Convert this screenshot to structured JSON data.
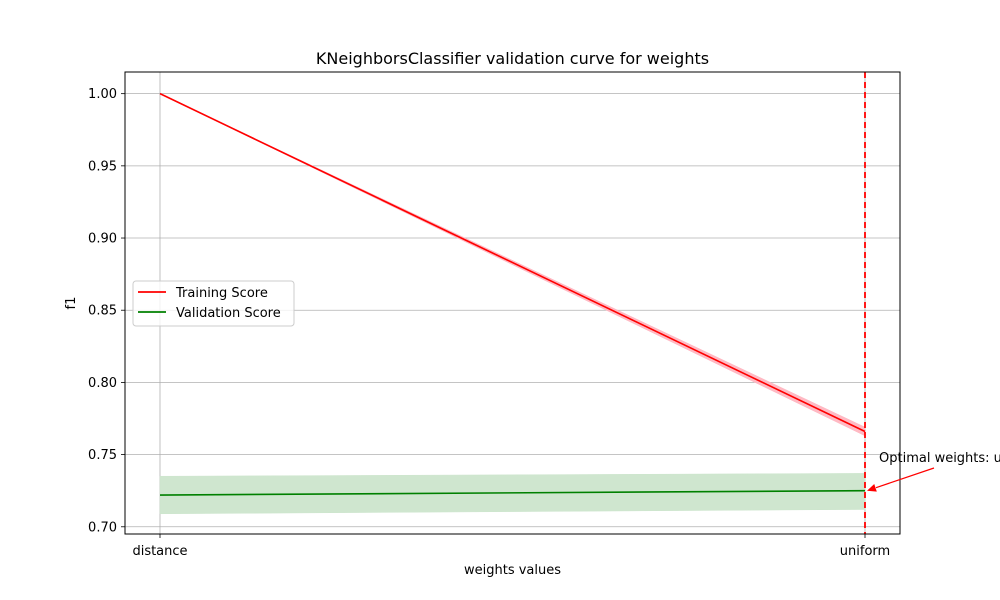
{
  "chart_data": {
    "type": "line",
    "title": "KNeighborsClassifier validation curve for weights",
    "xlabel": "weights values",
    "ylabel": "f1",
    "categories": [
      "distance",
      "uniform"
    ],
    "ylim": [
      0.695,
      1.015
    ],
    "yticks": [
      "0.70",
      "0.75",
      "0.80",
      "0.85",
      "0.90",
      "0.95",
      "1.00"
    ],
    "grid": true,
    "legend_position": "center-left",
    "series": [
      {
        "name": "Training Score",
        "color": "#ff0000",
        "band_color": "#ffb6c1",
        "values": [
          1.0,
          0.766
        ],
        "lower": [
          1.0,
          0.763
        ],
        "upper": [
          1.0,
          0.769
        ]
      },
      {
        "name": "Validation Score",
        "color": "#008000",
        "band_color": "#cce5cc",
        "values": [
          0.722,
          0.725
        ],
        "lower": [
          0.709,
          0.712
        ],
        "upper": [
          0.735,
          0.737
        ]
      }
    ],
    "optimal_line": {
      "category": "uniform",
      "color": "#ff0000"
    },
    "annotation": {
      "text": "Optimal weights: uniform",
      "target_category": "uniform",
      "target_value": 0.725
    }
  }
}
